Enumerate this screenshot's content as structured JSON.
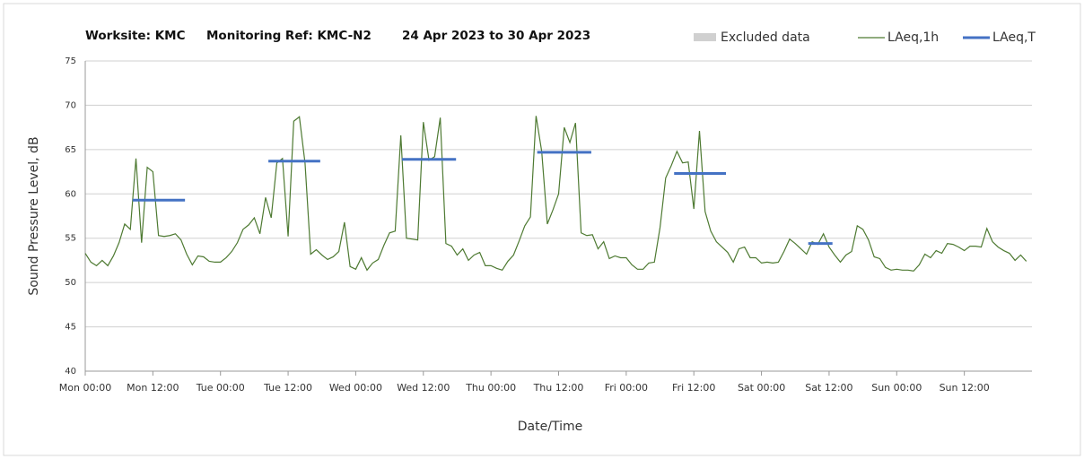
{
  "chart_data": {
    "type": "line",
    "title": [
      "Worksite: KMC",
      "Monitoring Ref: KMC-N2",
      "24 Apr 2023 to 30 Apr 2023"
    ],
    "x_label": "Date/Time",
    "y_label": "Sound Pressure Level, dB",
    "excluded": {
      "name": "Excluded data",
      "color": "#d0d0d0"
    },
    "x": [
      0,
      1,
      2,
      3,
      4,
      5,
      6,
      7,
      8,
      9,
      10,
      11,
      12,
      13,
      14,
      15,
      16,
      17,
      18,
      19,
      20,
      21,
      22,
      23,
      24,
      25,
      26,
      27,
      28,
      29,
      30,
      31,
      32,
      33,
      34,
      35,
      36,
      37,
      38,
      39,
      40,
      41,
      42,
      43,
      44,
      45,
      46,
      47,
      48,
      49,
      50,
      51,
      52,
      53,
      54,
      55,
      56,
      57,
      58,
      59,
      60,
      61,
      62,
      63,
      64,
      65,
      66,
      67,
      68,
      69,
      70,
      71,
      72,
      73,
      74,
      75,
      76,
      77,
      78,
      79,
      80,
      81,
      82,
      83,
      84,
      85,
      86,
      87,
      88,
      89,
      90,
      91,
      92,
      93,
      94,
      95,
      96,
      97,
      98,
      99,
      100,
      101,
      102,
      103,
      104,
      105,
      106,
      107,
      108,
      109,
      110,
      111,
      112,
      113,
      114,
      115,
      116,
      117,
      118,
      119,
      120,
      121,
      122,
      123,
      124,
      125,
      126,
      127,
      128,
      129,
      130,
      131,
      132,
      133,
      134,
      135,
      136,
      137,
      138,
      139,
      140,
      141,
      142,
      143,
      144,
      145,
      146,
      147,
      148,
      149,
      150,
      151,
      152,
      153,
      154,
      155,
      156,
      157,
      158,
      159,
      160,
      161,
      162,
      163,
      164,
      165,
      166,
      167
    ],
    "series": [
      {
        "name": "LAeq,1h",
        "color": "#4e7a32",
        "values": [
          53.3,
          52.3,
          51.9,
          52.5,
          51.9,
          53,
          54.5,
          56.6,
          56,
          64,
          54.5,
          63,
          62.5,
          55.3,
          55.2,
          55.3,
          55.5,
          54.8,
          53.2,
          52,
          53,
          52.9,
          52.4,
          52.3,
          52.3,
          52.8,
          53.5,
          54.5,
          56,
          56.5,
          57.3,
          55.5,
          59.6,
          57.3,
          63.5,
          64,
          55.2,
          68.2,
          68.7,
          63.5,
          53.2,
          53.7,
          53.1,
          52.6,
          52.9,
          53.5,
          56.8,
          51.8,
          51.5,
          52.8,
          51.4,
          52.2,
          52.6,
          54.2,
          55.6,
          55.8,
          66.6,
          55,
          54.9,
          54.8,
          68.1,
          63.8,
          64.2,
          68.6,
          54.4,
          54.1,
          53.1,
          53.8,
          52.5,
          53.1,
          53.4,
          51.9,
          51.9,
          51.6,
          51.4,
          52.4,
          53.1,
          54.7,
          56.4,
          57.4,
          68.8,
          64.8,
          56.6,
          58.2,
          60,
          67.5,
          65.8,
          68,
          55.6,
          55.3,
          55.4,
          53.8,
          54.6,
          52.7,
          53,
          52.8,
          52.8,
          52,
          51.5,
          51.5,
          52.2,
          52.3,
          56.2,
          61.8,
          63.2,
          64.8,
          63.5,
          63.6,
          58.3,
          67.1,
          58,
          55.8,
          54.6,
          54,
          53.4,
          52.3,
          53.8,
          54,
          52.8,
          52.8,
          52.2,
          52.3,
          52.2,
          52.3,
          53.5,
          54.9,
          54.4,
          53.8,
          53.2,
          54.6,
          54.3,
          55.5,
          54,
          53.1,
          52.3,
          53.1,
          53.5,
          56.4,
          56,
          54.8,
          52.9,
          52.7,
          51.7,
          51.4,
          51.5,
          51.4,
          51.4,
          51.3,
          52,
          53.2,
          52.8,
          53.6,
          53.3,
          54.4,
          54.3,
          54,
          53.6,
          54.1,
          54.1,
          54,
          56.1,
          54.6,
          54,
          53.6,
          53.3,
          52.5,
          53.1,
          52.4
        ]
      },
      {
        "name": "LAeq,T",
        "color": "#4472c4",
        "segments": [
          {
            "x": [
              8.4,
              17.7
            ],
            "value": 59.3
          },
          {
            "x": [
              32.5,
              41.7
            ],
            "value": 63.7
          },
          {
            "x": [
              56.2,
              65.8
            ],
            "value": 63.9
          },
          {
            "x": [
              80.2,
              89.8
            ],
            "value": 64.7
          },
          {
            "x": [
              104.5,
              113.7
            ],
            "value": 62.3
          },
          {
            "x": [
              128.3,
              132.6
            ],
            "value": 54.4
          }
        ]
      }
    ],
    "xlim": [
      0,
      168
    ],
    "xticks": [
      {
        "value": 0,
        "label": "Mon 00:00"
      },
      {
        "value": 12,
        "label": "Mon 12:00"
      },
      {
        "value": 24,
        "label": "Tue 00:00"
      },
      {
        "value": 36,
        "label": "Tue 12:00"
      },
      {
        "value": 48,
        "label": "Wed 00:00"
      },
      {
        "value": 60,
        "label": "Wed 12:00"
      },
      {
        "value": 72,
        "label": "Thu 00:00"
      },
      {
        "value": 84,
        "label": "Thu 12:00"
      },
      {
        "value": 96,
        "label": "Fri 00:00"
      },
      {
        "value": 108,
        "label": "Fri 12:00"
      },
      {
        "value": 120,
        "label": "Sat 00:00"
      },
      {
        "value": 132,
        "label": "Sat 12:00"
      },
      {
        "value": 144,
        "label": "Sun 00:00"
      },
      {
        "value": 156,
        "label": "Sun 12:00"
      }
    ],
    "ylim": [
      40,
      75
    ],
    "yticks": [
      40,
      45,
      50,
      55,
      60,
      65,
      70,
      75
    ],
    "grid": true
  }
}
